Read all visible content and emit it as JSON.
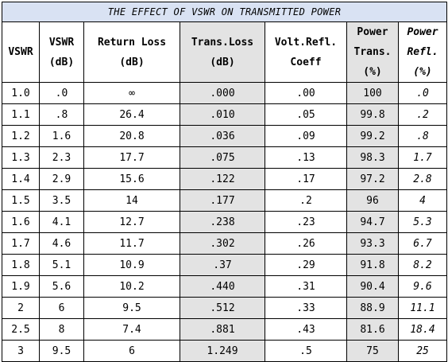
{
  "title": "THE EFFECT OF VSWR ON TRANSMITTED POWER",
  "headers": [
    [
      "VSWR"
    ],
    [
      "VSWR",
      "(dB)"
    ],
    [
      "Return Loss",
      "(dB)"
    ],
    [
      "Trans.Loss",
      "(dB)"
    ],
    [
      "Volt.Refl.",
      "Coeff"
    ],
    [
      "Power",
      "Trans.",
      "(%)"
    ],
    [
      "Power",
      "Refl.",
      "(%)"
    ]
  ],
  "rows": [
    [
      "1.0",
      ".0",
      "∞",
      ".000",
      ".00",
      "100",
      ".0"
    ],
    [
      "1.1",
      ".8",
      "26.4",
      ".010",
      ".05",
      "99.8",
      ".2"
    ],
    [
      "1.2",
      "1.6",
      "20.8",
      ".036",
      ".09",
      "99.2",
      ".8"
    ],
    [
      "1.3",
      "2.3",
      "17.7",
      ".075",
      ".13",
      "98.3",
      "1.7"
    ],
    [
      "1.4",
      "2.9",
      "15.6",
      ".122",
      ".17",
      "97.2",
      "2.8"
    ],
    [
      "1.5",
      "3.5",
      "14",
      ".177",
      ".2",
      "96",
      "4"
    ],
    [
      "1.6",
      "4.1",
      "12.7",
      ".238",
      ".23",
      "94.7",
      "5.3"
    ],
    [
      "1.7",
      "4.6",
      "11.7",
      ".302",
      ".26",
      "93.3",
      "6.7"
    ],
    [
      "1.8",
      "5.1",
      "10.9",
      ".37",
      ".29",
      "91.8",
      "8.2"
    ],
    [
      "1.9",
      "5.6",
      "10.2",
      ".440",
      ".31",
      "90.4",
      "9.6"
    ],
    [
      "2",
      "6",
      "9.5",
      ".512",
      ".33",
      "88.9",
      "11.1"
    ],
    [
      "2.5",
      "8",
      "7.4",
      ".881",
      ".43",
      "81.6",
      "18.4"
    ],
    [
      "3",
      "9.5",
      "6",
      "1.249",
      ".5",
      "75",
      "25"
    ]
  ],
  "colors": {
    "title_bg": "#d9e2f3",
    "shade": "#e3e3e3",
    "border": "#000000"
  }
}
